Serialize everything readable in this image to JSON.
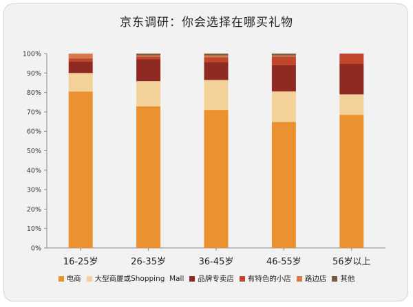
{
  "title": "京东调研：你会选择在哪买礼物",
  "chart_data": {
    "type": "bar",
    "stacked": true,
    "categories": [
      "16-25岁",
      "26-35岁",
      "36-45岁",
      "46-55岁",
      "56岁以上"
    ],
    "ylim": [
      0,
      100
    ],
    "y_ticks": [
      "0%",
      "10%",
      "20%",
      "30%",
      "40%",
      "50%",
      "60%",
      "70%",
      "80%",
      "90%",
      "100%"
    ],
    "grid": false,
    "legend_position": "bottom",
    "series": [
      {
        "name": "电商",
        "color": "#ec9130",
        "values": [
          80.5,
          72.8,
          71.0,
          64.8,
          68.5
        ]
      },
      {
        "name": "大型商厦或Shopping  Mall",
        "color": "#f3d29a",
        "values": [
          9.5,
          13.0,
          15.4,
          15.7,
          10.5
        ]
      },
      {
        "name": "品牌专卖店",
        "color": "#8e2a22",
        "values": [
          6.0,
          11.2,
          9.2,
          13.5,
          15.7
        ]
      },
      {
        "name": "有特色的小店",
        "color": "#c0472c",
        "values": [
          1.5,
          1.5,
          2.5,
          4.5,
          5.3
        ]
      },
      {
        "name": "路边店",
        "color": "#d9774f",
        "values": [
          2.5,
          0.5,
          0.9,
          0.5,
          0.0
        ]
      },
      {
        "name": "其他",
        "color": "#7a5c3c",
        "values": [
          0.0,
          1.0,
          1.0,
          1.0,
          0.0
        ]
      }
    ]
  }
}
